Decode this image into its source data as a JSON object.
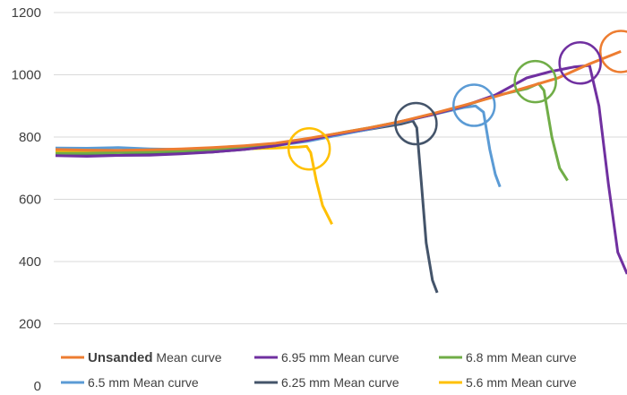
{
  "chart_data": {
    "type": "line",
    "title": "",
    "xlabel": "",
    "ylabel": "",
    "ylim": [
      0,
      1200
    ],
    "y_ticks": [
      0,
      200,
      400,
      600,
      800,
      1000,
      1200
    ],
    "grid": "horizontal",
    "legend_position": "bottom",
    "series": [
      {
        "name": "Unsanded Mean curve",
        "color": "#ED7D31",
        "points": [
          [
            0,
            760
          ],
          [
            40,
            758
          ],
          [
            80,
            757
          ],
          [
            120,
            759
          ],
          [
            160,
            762
          ],
          [
            200,
            766
          ],
          [
            240,
            772
          ],
          [
            280,
            780
          ],
          [
            320,
            795
          ],
          [
            360,
            812
          ],
          [
            400,
            830
          ],
          [
            440,
            850
          ],
          [
            480,
            875
          ],
          [
            520,
            902
          ],
          [
            560,
            930
          ],
          [
            600,
            960
          ],
          [
            640,
            990
          ],
          [
            680,
            1035
          ],
          [
            720,
            1075
          ]
        ],
        "circle_at": [
          720,
          1075
        ]
      },
      {
        "name": "6.95 mm Mean curve",
        "color": "#7030A0",
        "points": [
          [
            0,
            740
          ],
          [
            40,
            738
          ],
          [
            80,
            741
          ],
          [
            120,
            742
          ],
          [
            160,
            746
          ],
          [
            200,
            752
          ],
          [
            240,
            760
          ],
          [
            280,
            772
          ],
          [
            320,
            790
          ],
          [
            360,
            810
          ],
          [
            400,
            828
          ],
          [
            440,
            850
          ],
          [
            480,
            872
          ],
          [
            520,
            900
          ],
          [
            560,
            935
          ],
          [
            600,
            990
          ],
          [
            630,
            1010
          ],
          [
            660,
            1025
          ],
          [
            680,
            1030
          ],
          [
            692,
            900
          ],
          [
            704,
            650
          ],
          [
            716,
            430
          ],
          [
            728,
            360
          ]
        ],
        "circle_at": [
          668,
          1038
        ]
      },
      {
        "name": "6.8 mm Mean curve",
        "color": "#70AD47",
        "points": [
          [
            0,
            748
          ],
          [
            40,
            748
          ],
          [
            80,
            750
          ],
          [
            120,
            752
          ],
          [
            160,
            755
          ],
          [
            200,
            760
          ],
          [
            240,
            767
          ],
          [
            280,
            778
          ],
          [
            320,
            793
          ],
          [
            360,
            812
          ],
          [
            400,
            830
          ],
          [
            440,
            850
          ],
          [
            480,
            872
          ],
          [
            520,
            900
          ],
          [
            560,
            932
          ],
          [
            600,
            955
          ],
          [
            615,
            972
          ],
          [
            622,
            950
          ],
          [
            632,
            800
          ],
          [
            642,
            700
          ],
          [
            652,
            660
          ]
        ],
        "circle_at": [
          611,
          978
        ]
      },
      {
        "name": "6.5 mm Mean curve",
        "color": "#5B9BD5",
        "points": [
          [
            0,
            765
          ],
          [
            40,
            764
          ],
          [
            80,
            766
          ],
          [
            120,
            762
          ],
          [
            160,
            760
          ],
          [
            200,
            762
          ],
          [
            240,
            766
          ],
          [
            280,
            772
          ],
          [
            320,
            786
          ],
          [
            360,
            806
          ],
          [
            400,
            826
          ],
          [
            440,
            848
          ],
          [
            480,
            872
          ],
          [
            520,
            895
          ],
          [
            535,
            900
          ],
          [
            545,
            880
          ],
          [
            553,
            760
          ],
          [
            560,
            680
          ],
          [
            566,
            640
          ]
        ],
        "circle_at": [
          533,
          902
        ]
      },
      {
        "name": "6.25 mm Mean curve",
        "color": "#44546A",
        "points": [
          [
            0,
            742
          ],
          [
            40,
            740
          ],
          [
            80,
            742
          ],
          [
            120,
            745
          ],
          [
            160,
            748
          ],
          [
            200,
            752
          ],
          [
            240,
            760
          ],
          [
            280,
            772
          ],
          [
            320,
            790
          ],
          [
            360,
            808
          ],
          [
            400,
            825
          ],
          [
            440,
            842
          ],
          [
            455,
            852
          ],
          [
            460,
            830
          ],
          [
            466,
            650
          ],
          [
            472,
            460
          ],
          [
            480,
            340
          ],
          [
            486,
            300
          ]
        ],
        "circle_at": [
          459,
          843
        ]
      },
      {
        "name": "5.6 mm Mean curve",
        "color": "#FFC000",
        "points": [
          [
            0,
            755
          ],
          [
            40,
            754
          ],
          [
            80,
            752
          ],
          [
            120,
            754
          ],
          [
            160,
            756
          ],
          [
            200,
            760
          ],
          [
            240,
            762
          ],
          [
            280,
            765
          ],
          [
            310,
            768
          ],
          [
            320,
            770
          ],
          [
            325,
            750
          ],
          [
            332,
            660
          ],
          [
            340,
            580
          ],
          [
            348,
            540
          ],
          [
            352,
            520
          ]
        ],
        "circle_at": [
          323,
          762
        ]
      }
    ],
    "legend": [
      {
        "label": "Unsanded",
        "suffix": " Mean curve"
      },
      {
        "label": "6.95 mm Mean curve",
        "suffix": ""
      },
      {
        "label": "6.8 mm Mean curve",
        "suffix": ""
      },
      {
        "label": "6.5 mm Mean curve",
        "suffix": ""
      },
      {
        "label": "6.25 mm Mean curve",
        "suffix": ""
      },
      {
        "label": "5.6 mm Mean curve",
        "suffix": ""
      }
    ]
  }
}
